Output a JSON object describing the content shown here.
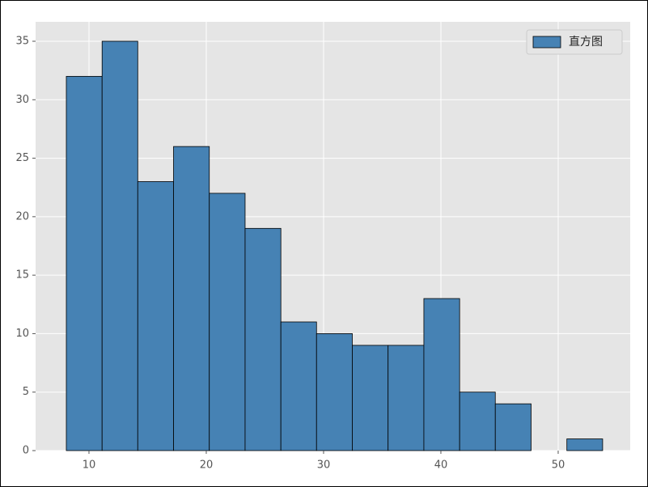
{
  "chart_data": {
    "type": "histogram",
    "bins": [
      8.07,
      11.12,
      14.16,
      17.21,
      20.26,
      23.31,
      26.36,
      29.4,
      32.45,
      35.5,
      38.55,
      41.6,
      44.64,
      47.69,
      50.74,
      53.79
    ],
    "series": [
      {
        "name": "直方图",
        "color": "#4682b4",
        "edgecolor": "#000000",
        "values": [
          32,
          35,
          23,
          26,
          22,
          19,
          11,
          10,
          9,
          9,
          13,
          5,
          4,
          0,
          1
        ]
      }
    ],
    "xlim": [
      5.45,
      56.14
    ],
    "xticks": [
      10,
      20,
      30,
      40,
      50
    ],
    "ylim": [
      0,
      36.66
    ],
    "yticks": [
      0,
      5,
      10,
      15,
      20,
      25,
      30,
      35
    ],
    "grid": true,
    "legend": "upper right"
  }
}
